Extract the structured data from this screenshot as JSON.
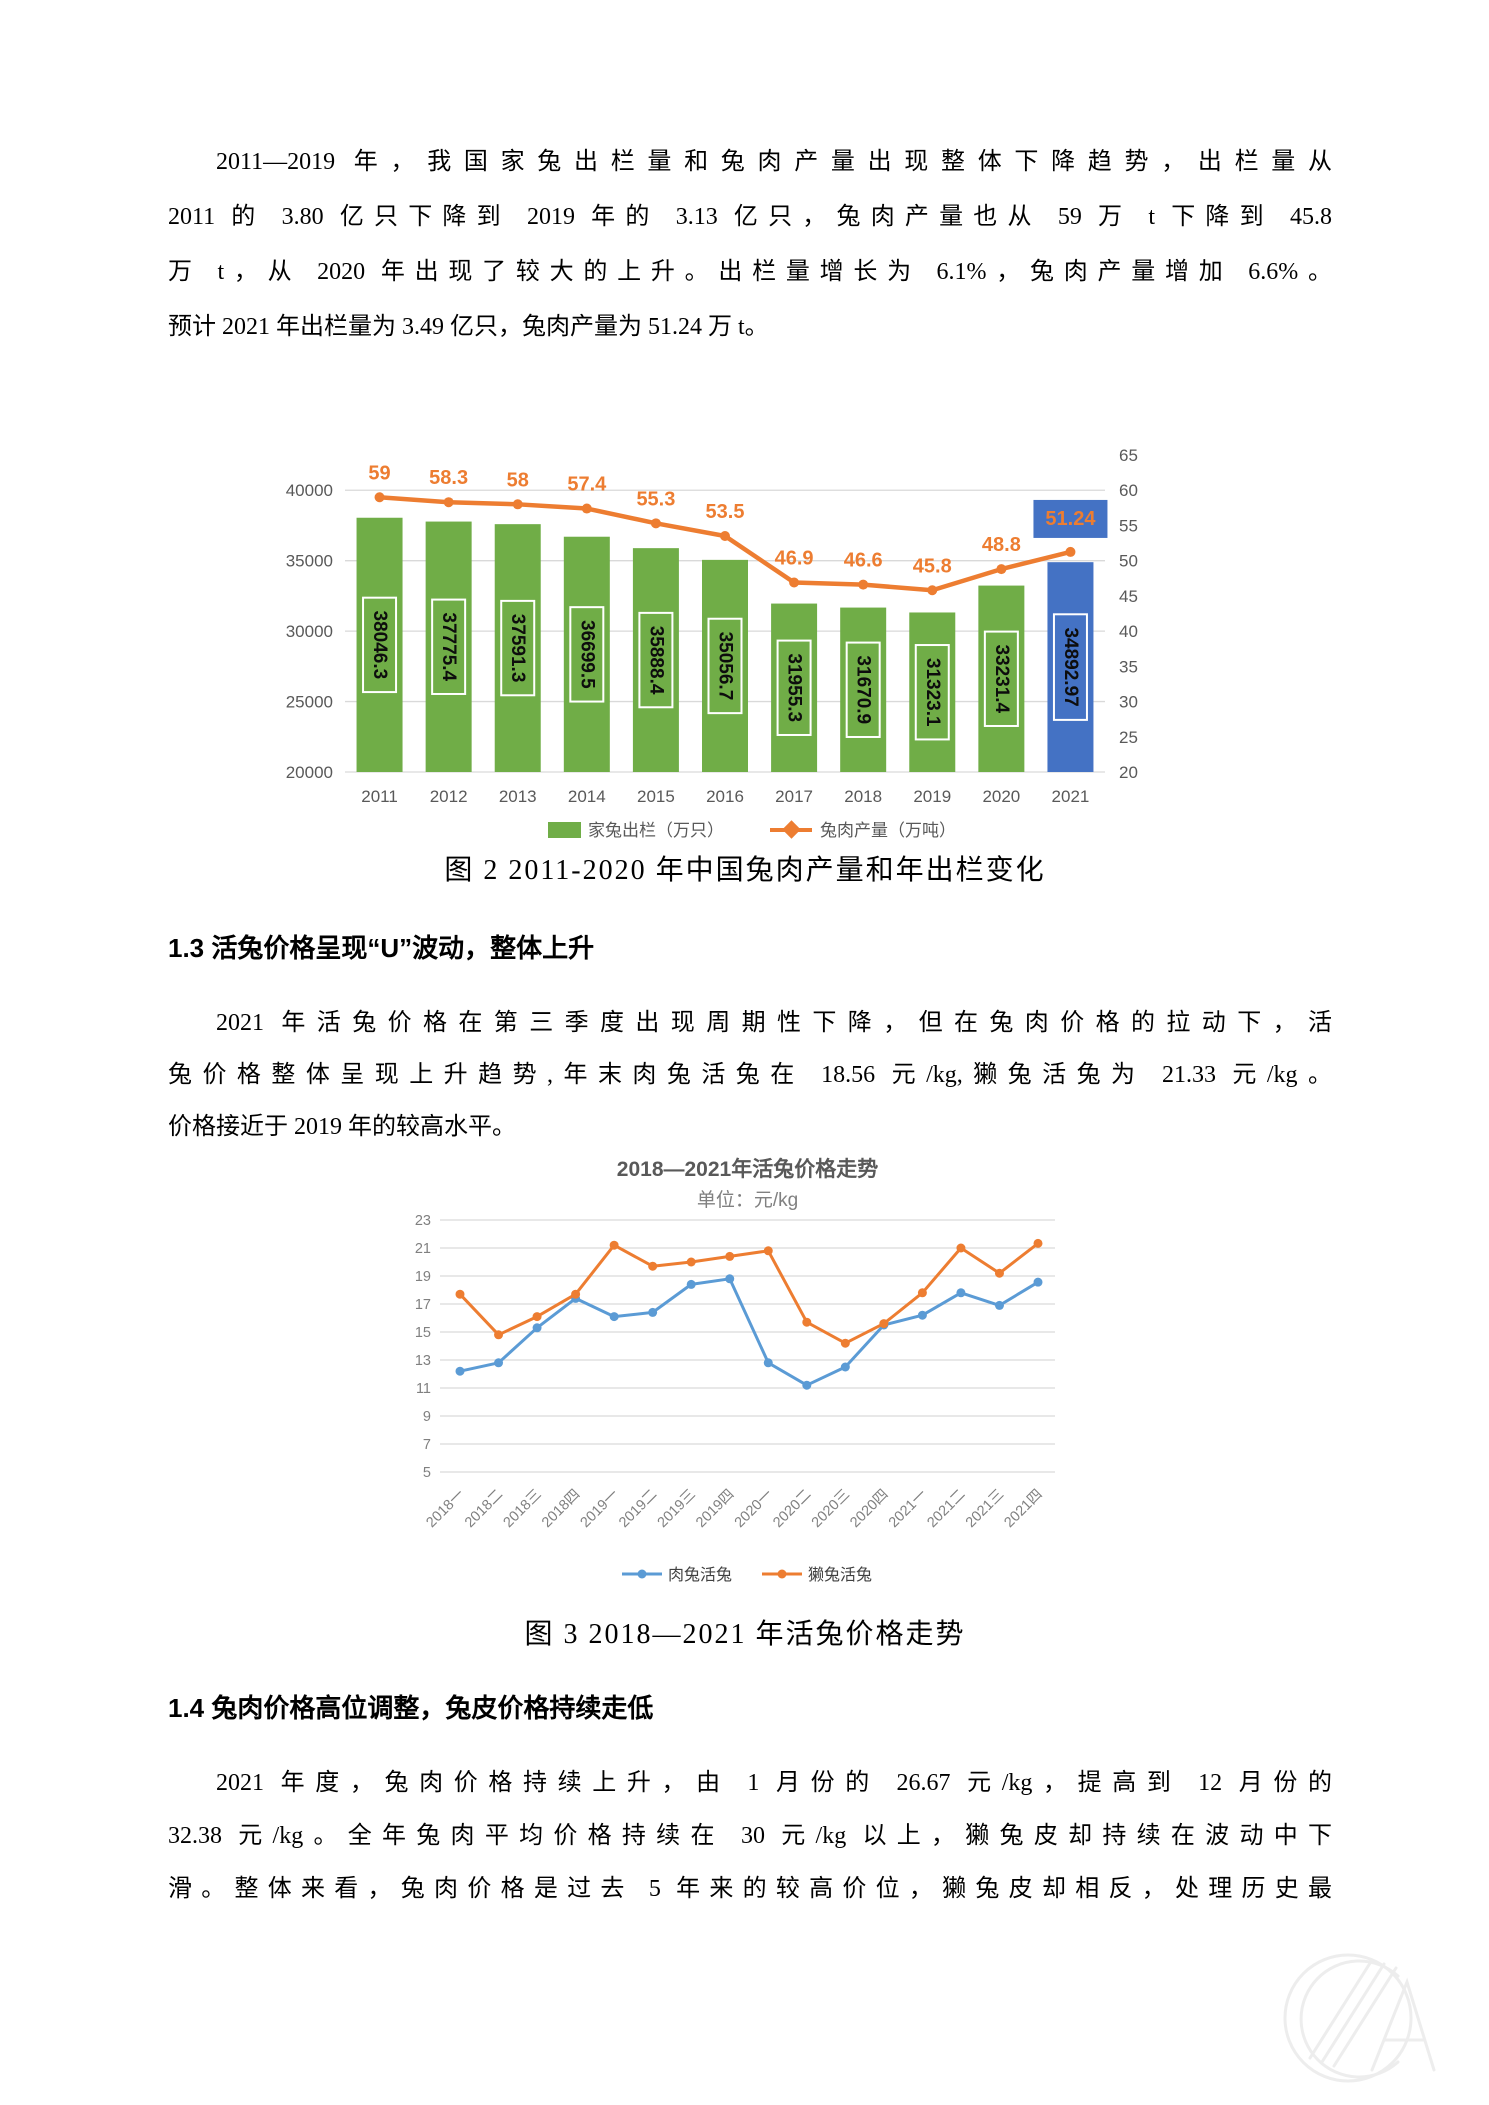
{
  "doc": {
    "paragraph1": {
      "lines": [
        "2011—2019 年，我国家兔出栏量和兔肉产量出现整体下降趋势，出栏量从",
        "2011 的 3.80 亿只下降到 2019 年的 3.13 亿只，兔肉产量也从 59 万 t 下降到 45.8",
        "万 t，从 2020 年出现了较大的上升。出栏量增长为 6.1%，兔肉产量增加 6.6%。",
        "预计 2021 年出栏量为 3.49 亿只，兔肉产量为 51.24 万 t。"
      ]
    },
    "section13": {
      "heading": "1.3 活兔价格呈现“U”波动，整体上升"
    },
    "paragraph2": {
      "lines": [
        "2021 年活兔价格在第三季度出现周期性下降，但在兔肉价格的拉动下，活",
        "兔价格整体呈现上升趋势,年末肉兔活兔在 18.56 元/kg,獭兔活兔为 21.33 元/kg。",
        "价格接近于 2019 年的较高水平。"
      ]
    },
    "section14": {
      "heading": "1.4 兔肉价格高位调整，兔皮价格持续走低"
    },
    "paragraph3": {
      "lines": [
        "2021 年度，兔肉价格持续上升，由 1 月份的 26.67 元/kg，提高到 12 月份的",
        "32.38 元/kg。全年兔肉平均价格持续在 30 元/kg 以上，獭兔皮却持续在波动中下",
        "滑。整体来看，兔肉价格是过去 5 年来的较高价位，獭兔皮却相反，处理历史最"
      ]
    }
  },
  "chart_data": [
    {
      "type": "combo_bar_line",
      "caption": "图 2  2011-2020 年中国兔肉产量和年出栏变化",
      "categories": [
        "2011",
        "2012",
        "2013",
        "2014",
        "2015",
        "2016",
        "2017",
        "2018",
        "2019",
        "2020",
        "2021"
      ],
      "series": [
        {
          "name": "家兔出栏（万只）",
          "type": "bar",
          "axis": "left",
          "color": "#70AD47",
          "highlight_index": 10,
          "highlight_color": "#4472C4",
          "values": [
            38046.3,
            37775.4,
            37591.3,
            36699.5,
            35888.4,
            35056.7,
            31955.3,
            31670.9,
            31323.1,
            33231.4,
            34892.97
          ]
        },
        {
          "name": "兔肉产量（万吨）",
          "type": "line",
          "axis": "right",
          "color": "#ED7D31",
          "last_label_bg": "#4472C4",
          "values": [
            59,
            58.3,
            58,
            57.4,
            55.3,
            53.5,
            46.9,
            46.6,
            45.8,
            48.8,
            51.24
          ]
        }
      ],
      "left_axis": {
        "min": 20000,
        "max": 40000,
        "step": 5000,
        "ticks": [
          40000,
          35000,
          30000,
          25000,
          20000
        ]
      },
      "right_axis": {
        "min": 20,
        "max": 65,
        "step": 5,
        "ticks": [
          65,
          60,
          55,
          50,
          45,
          40,
          35,
          30,
          25,
          20
        ]
      },
      "grid": true,
      "legend_position": "bottom"
    },
    {
      "type": "line",
      "title": "2018—2021年活兔价格走势",
      "subtitle": "单位：元/kg",
      "caption": "图 3  2018—2021 年活兔价格走势",
      "categories": [
        "2018一",
        "2018二",
        "2018三",
        "2018四",
        "2019一",
        "2019二",
        "2019三",
        "2019四",
        "2020一",
        "2020二",
        "2020三",
        "2020四",
        "2021一",
        "2021二",
        "2021三",
        "2021四"
      ],
      "series": [
        {
          "name": "肉兔活兔",
          "color": "#5B9BD5",
          "values": [
            12.2,
            12.8,
            15.3,
            17.4,
            16.1,
            16.4,
            18.4,
            18.8,
            12.8,
            11.2,
            12.5,
            15.5,
            16.2,
            17.8,
            16.9,
            18.56
          ]
        },
        {
          "name": "獭兔活兔",
          "color": "#ED7D31",
          "values": [
            17.7,
            14.8,
            16.1,
            17.7,
            21.2,
            19.7,
            20.0,
            20.4,
            20.8,
            15.7,
            14.2,
            15.6,
            17.8,
            21.0,
            19.2,
            21.33
          ]
        }
      ],
      "y_axis": {
        "min": 5,
        "max": 23,
        "step": 2,
        "ticks": [
          23,
          21,
          19,
          17,
          15,
          13,
          11,
          9,
          7,
          5
        ]
      },
      "grid": true,
      "legend_position": "bottom"
    }
  ]
}
